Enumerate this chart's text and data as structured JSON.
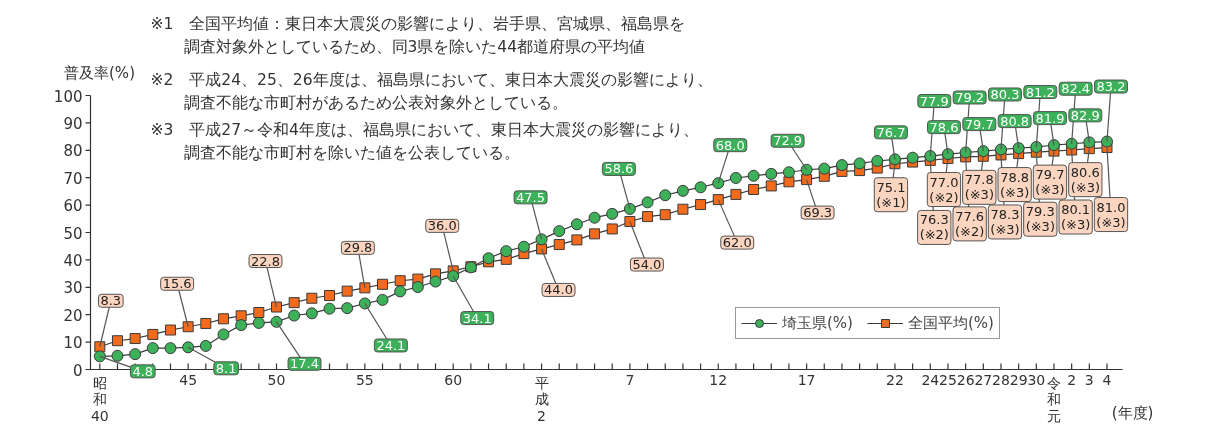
{
  "chart_data": {
    "type": "line",
    "ylabel": "普及率(%)",
    "xlabel": "(年度)",
    "annotations": [
      "※1　全国平均値：東日本大震災の影響により、岩手県、宮城県、福島県を調査対象外としているため、同3県を除いた44都道府県の平均値",
      "※2　平成24、25、26年度は、福島県において、東日本大震災の影響により、調査不能な市町村があるため公表対象外としている。",
      "※3　平成27～令和4年度は、福島県において、東日本大震災の影響により、調査不能な市町村を除いた値を公表している。"
    ],
    "categories": [
      "昭和40",
      null,
      null,
      null,
      null,
      "45",
      null,
      null,
      null,
      null,
      "50",
      null,
      null,
      null,
      null,
      "55",
      null,
      null,
      null,
      null,
      "60",
      null,
      null,
      null,
      null,
      "平成2",
      null,
      null,
      null,
      null,
      "7",
      null,
      null,
      null,
      null,
      "12",
      null,
      null,
      null,
      null,
      "17",
      null,
      null,
      null,
      null,
      "22",
      null,
      "24",
      "25",
      "26",
      "27",
      "28",
      "29",
      "30",
      "令和元",
      "2",
      "3",
      "4"
    ],
    "ylim": [
      0,
      100
    ],
    "yticks": [
      0,
      10,
      20,
      30,
      40,
      50,
      60,
      70,
      80,
      90,
      100
    ],
    "legend": "bottom right",
    "line_style": "solid",
    "series": [
      {
        "name": "埼玉県(%)",
        "color": "#3cb15a",
        "marker": "circle",
        "values": [
          4.8,
          5.0,
          5.6,
          7.8,
          7.8,
          8.1,
          8.6,
          12.8,
          16.2,
          17.0,
          17.4,
          19.7,
          20.5,
          22.2,
          22.4,
          24.1,
          25.4,
          28.5,
          30.1,
          32.1,
          34.1,
          37.3,
          40.6,
          43.2,
          44.8,
          47.5,
          50.5,
          53.0,
          55.4,
          56.8,
          58.6,
          61.0,
          63.6,
          65.2,
          66.5,
          68.0,
          69.9,
          70.7,
          71.4,
          72.0,
          72.9,
          73.3,
          74.6,
          75.2,
          76.1,
          76.7,
          77.3,
          77.9,
          78.6,
          79.2,
          79.7,
          80.3,
          80.8,
          81.2,
          81.9,
          82.4,
          82.9,
          83.2
        ],
        "value_labels": [
          "4.8",
          null,
          null,
          null,
          null,
          "8.1",
          null,
          null,
          null,
          null,
          "17.4",
          null,
          null,
          null,
          null,
          "24.1",
          null,
          null,
          null,
          null,
          "34.1",
          null,
          null,
          null,
          null,
          "47.5",
          null,
          null,
          null,
          null,
          "58.6",
          null,
          null,
          null,
          null,
          "68.0",
          null,
          null,
          null,
          null,
          "72.9",
          null,
          null,
          null,
          null,
          "76.7",
          null,
          "77.9",
          "78.6",
          "79.2",
          "79.7",
          "80.3",
          "80.8",
          "81.2",
          "81.9",
          "82.4",
          "82.9",
          "83.2"
        ]
      },
      {
        "name": "全国平均(%)",
        "color": "#f26b1d",
        "marker": "square",
        "values": [
          8.3,
          10.5,
          11.3,
          12.8,
          14.4,
          15.6,
          16.8,
          18.5,
          19.6,
          20.8,
          22.8,
          24.4,
          26.0,
          27.0,
          28.6,
          29.8,
          31.1,
          32.4,
          33.0,
          34.9,
          36.0,
          37.5,
          39.3,
          40.2,
          42.3,
          44.0,
          45.6,
          47.3,
          49.5,
          51.3,
          54.0,
          55.8,
          56.5,
          58.5,
          60.2,
          62.0,
          63.9,
          65.7,
          67.0,
          68.5,
          69.3,
          70.5,
          72.3,
          72.6,
          73.5,
          75.1,
          75.7,
          76.3,
          77.0,
          77.6,
          77.8,
          78.3,
          78.8,
          79.3,
          79.7,
          80.1,
          80.6,
          81.0
        ],
        "value_labels": [
          "8.3",
          null,
          null,
          null,
          null,
          "15.6",
          null,
          null,
          null,
          null,
          "22.8",
          null,
          null,
          null,
          null,
          "29.8",
          null,
          null,
          null,
          null,
          "36.0",
          null,
          null,
          null,
          null,
          "44.0",
          null,
          null,
          null,
          null,
          "54.0",
          null,
          null,
          null,
          null,
          "62.0",
          null,
          null,
          null,
          null,
          "69.3",
          null,
          null,
          null,
          null,
          "75.1\n(※1)",
          null,
          "76.3\n(※2)",
          "77.0\n(※2)",
          "77.6\n(※2)",
          "77.8\n(※3)",
          "78.3\n(※3)",
          "78.8\n(※3)",
          "79.3\n(※3)",
          "79.7\n(※3)",
          "80.1\n(※3)",
          "80.6\n(※3)",
          "81.0\n(※3)"
        ]
      }
    ]
  }
}
